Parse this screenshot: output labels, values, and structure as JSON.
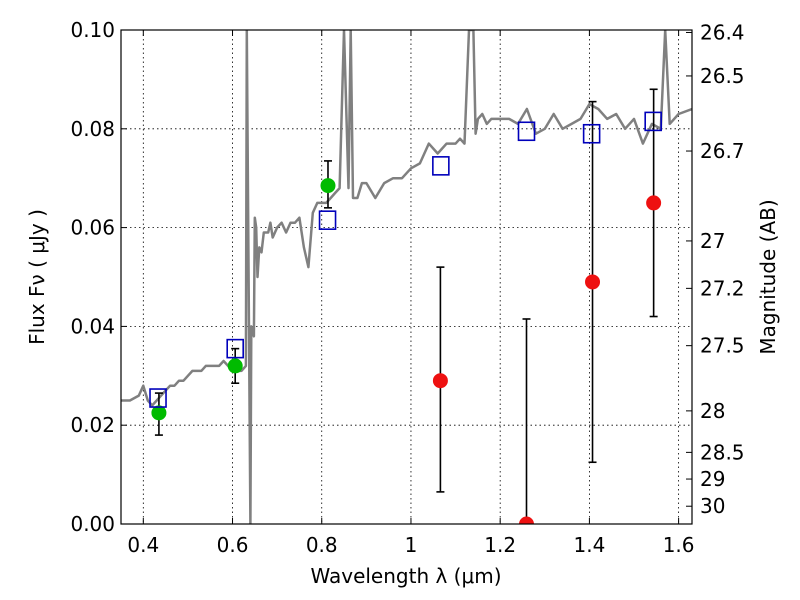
{
  "chart_data": {
    "type": "scatter",
    "title": "",
    "xlabel": "Wavelength  λ (μm)",
    "ylabel": "Flux  Fν  ( μJy )",
    "ylabel_right": "Magnitude (AB)",
    "xlim": [
      0.35,
      1.63
    ],
    "ylim": [
      0.0,
      0.1
    ],
    "grid": true,
    "legend": "none",
    "x_ticks": [
      0.4,
      0.6,
      0.8,
      1.0,
      1.2,
      1.4,
      1.6
    ],
    "x_tick_labels": [
      "0.4",
      "0.6",
      "0.8",
      "1",
      "1.2",
      "1.4",
      "1.6"
    ],
    "y_ticks": [
      0.0,
      0.02,
      0.04,
      0.06,
      0.08,
      0.1
    ],
    "y_tick_labels": [
      "0.00",
      "0.02",
      "0.04",
      "0.06",
      "0.08",
      "0.10"
    ],
    "right_ticks": [
      {
        "label": "26.4",
        "flux": 0.0995
      },
      {
        "label": "26.5",
        "flux": 0.0907
      },
      {
        "label": "26.7",
        "flux": 0.0755
      },
      {
        "label": "27",
        "flux": 0.0573
      },
      {
        "label": "27.2",
        "flux": 0.0477
      },
      {
        "label": "27.5",
        "flux": 0.0361
      },
      {
        "label": "28",
        "flux": 0.0229
      },
      {
        "label": "28.5",
        "flux": 0.0145
      },
      {
        "label": "29",
        "flux": 0.0091
      },
      {
        "label": "30",
        "flux": 0.0036
      }
    ],
    "colors": {
      "spectrum": "#808080",
      "green_points": "#00bb00",
      "red_points": "#ee1111",
      "model_squares": "#0000bb",
      "error_bars": "#000000",
      "grid": "#000000"
    },
    "series": [
      {
        "marker": "line",
        "color": "#808080",
        "x": [
          0.35,
          0.37,
          0.39,
          0.4,
          0.41,
          0.42,
          0.43,
          0.44,
          0.45,
          0.46,
          0.47,
          0.48,
          0.49,
          0.5,
          0.51,
          0.52,
          0.53,
          0.54,
          0.55,
          0.56,
          0.57,
          0.58,
          0.59,
          0.6,
          0.61,
          0.62,
          0.63,
          0.632,
          0.64,
          0.642,
          0.648,
          0.65,
          0.653,
          0.656,
          0.66,
          0.665,
          0.67,
          0.68,
          0.685,
          0.69,
          0.7,
          0.71,
          0.72,
          0.73,
          0.74,
          0.75,
          0.76,
          0.77,
          0.78,
          0.79,
          0.8,
          0.81,
          0.82,
          0.83,
          0.84,
          0.85,
          0.86,
          0.865,
          0.87,
          0.88,
          0.89,
          0.9,
          0.92,
          0.94,
          0.96,
          0.98,
          1.0,
          1.02,
          1.04,
          1.06,
          1.08,
          1.1,
          1.11,
          1.12,
          1.13,
          1.14,
          1.145,
          1.15,
          1.16,
          1.17,
          1.18,
          1.2,
          1.22,
          1.24,
          1.26,
          1.28,
          1.3,
          1.32,
          1.34,
          1.36,
          1.38,
          1.4,
          1.42,
          1.44,
          1.46,
          1.48,
          1.5,
          1.52,
          1.54,
          1.56,
          1.57,
          1.58,
          1.6,
          1.63
        ],
        "y": [
          0.025,
          0.025,
          0.026,
          0.028,
          0.025,
          0.024,
          0.025,
          0.026,
          0.027,
          0.028,
          0.028,
          0.029,
          0.029,
          0.03,
          0.031,
          0.031,
          0.031,
          0.032,
          0.032,
          0.032,
          0.032,
          0.033,
          0.032,
          0.031,
          0.031,
          0.031,
          0.032,
          0.1,
          0.0,
          0.04,
          0.038,
          0.062,
          0.06,
          0.05,
          0.056,
          0.055,
          0.059,
          0.059,
          0.061,
          0.058,
          0.06,
          0.061,
          0.059,
          0.061,
          0.061,
          0.062,
          0.056,
          0.052,
          0.063,
          0.065,
          0.065,
          0.065,
          0.066,
          0.067,
          0.068,
          0.1,
          0.068,
          0.1,
          0.066,
          0.066,
          0.069,
          0.069,
          0.066,
          0.069,
          0.07,
          0.07,
          0.072,
          0.073,
          0.077,
          0.075,
          0.077,
          0.077,
          0.078,
          0.077,
          0.1,
          0.1,
          0.079,
          0.082,
          0.083,
          0.081,
          0.082,
          0.082,
          0.082,
          0.081,
          0.084,
          0.079,
          0.08,
          0.083,
          0.08,
          0.081,
          0.082,
          0.085,
          0.084,
          0.082,
          0.083,
          0.08,
          0.082,
          0.077,
          0.081,
          0.08,
          0.1,
          0.081,
          0.083,
          0.084
        ]
      },
      {
        "marker": "circle",
        "color": "#00bb00",
        "x": [
          0.435,
          0.606,
          0.814
        ],
        "y": [
          0.0225,
          0.032,
          0.0685
        ],
        "err_low": [
          0.018,
          0.0285,
          0.064
        ],
        "err_high": [
          0.0265,
          0.0355,
          0.0735
        ]
      },
      {
        "marker": "circle",
        "color": "#ee1111",
        "x": [
          1.066,
          1.259,
          1.407,
          1.544
        ],
        "y": [
          0.029,
          0.0,
          0.049,
          0.065
        ],
        "err_low": [
          0.0065,
          0.0,
          0.0125,
          0.042
        ],
        "err_high": [
          0.052,
          0.0415,
          0.0855,
          0.088
        ]
      },
      {
        "marker": "square",
        "color": "#0000bb",
        "x": [
          0.433,
          0.606,
          0.813,
          1.067,
          1.259,
          1.405,
          1.543
        ],
        "y": [
          0.0255,
          0.0355,
          0.0615,
          0.0725,
          0.0795,
          0.079,
          0.0815
        ]
      }
    ]
  }
}
